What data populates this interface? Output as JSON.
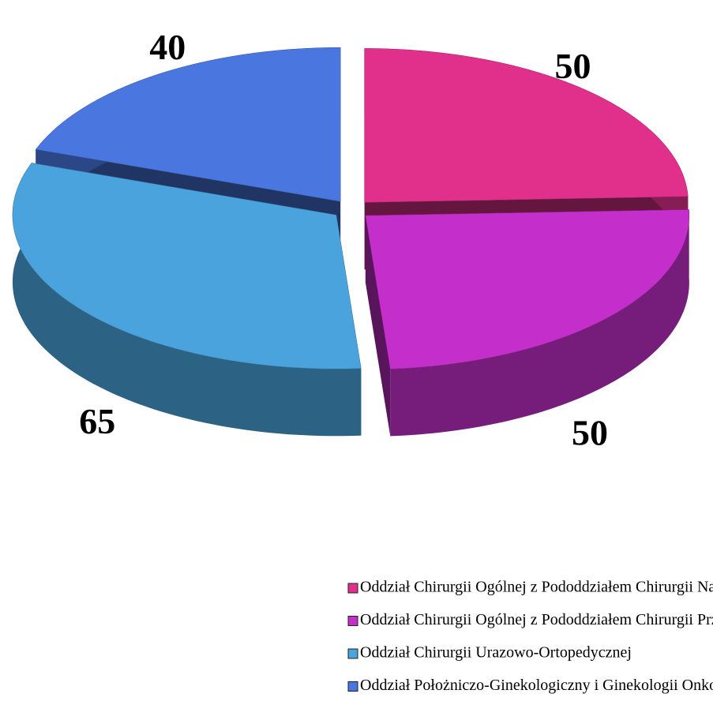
{
  "chart_data": {
    "type": "pie",
    "categories": [
      "Oddział Chirurgii Ogólnej z Pododdziałem Chirurgii Naczyniowej",
      "Oddział Chirurgii Ogólnej z Pododdziałem Chirurgii Przewodu Pokarmowego",
      "Oddział Chirurgii Urazowo-Ortopedycznej",
      "Oddział Położniczo-Ginekologiczny i Ginekologii Onkologicznej"
    ],
    "values": [
      50,
      50,
      65,
      40
    ],
    "colors": [
      "#e0308c",
      "#c42fcc",
      "#4aa3dc",
      "#4a76e0"
    ],
    "legend": "bottom"
  }
}
